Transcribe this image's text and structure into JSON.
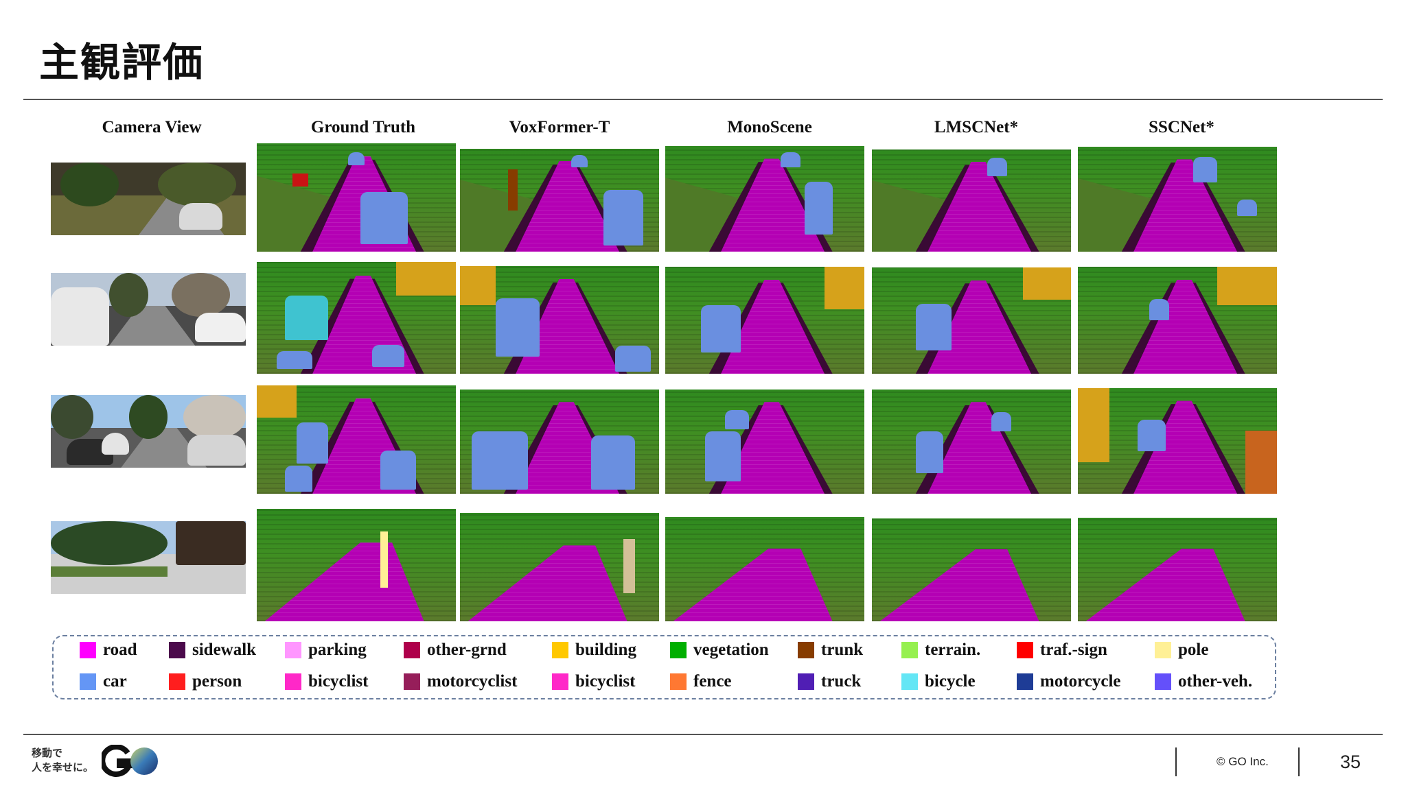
{
  "title": "主観評価",
  "columns": [
    "Camera View",
    "Ground Truth",
    "VoxFormer-T",
    "MonoScene",
    "LMSCNet*",
    "SSCNet*"
  ],
  "legend": [
    {
      "label": "road",
      "color": "#ff00ff"
    },
    {
      "label": "sidewalk",
      "color": "#4b0a4b"
    },
    {
      "label": "parking",
      "color": "#ff96ff"
    },
    {
      "label": "other-grnd",
      "color": "#af004b"
    },
    {
      "label": "building",
      "color": "#ffc800"
    },
    {
      "label": "vegetation",
      "color": "#00af00"
    },
    {
      "label": "trunk",
      "color": "#873c00"
    },
    {
      "label": "terrain.",
      "color": "#96f050"
    },
    {
      "label": "traf.-sign",
      "color": "#ff0000"
    },
    {
      "label": "pole",
      "color": "#fff096"
    },
    {
      "label": "car",
      "color": "#6496f5"
    },
    {
      "label": "person",
      "color": "#ff1e1e"
    },
    {
      "label": "bicyclist",
      "color": "#ff28c8"
    },
    {
      "label": "motorcyclist",
      "color": "#961e5a"
    },
    {
      "label": "bicyclist",
      "color": "#ff28c8"
    },
    {
      "label": "fence",
      "color": "#ff7832"
    },
    {
      "label": "truck",
      "color": "#501eb4"
    },
    {
      "label": "bicycle",
      "color": "#64e6f5"
    },
    {
      "label": "motorcycle",
      "color": "#1e3c96"
    },
    {
      "label": "other-veh.",
      "color": "#6450fa"
    }
  ],
  "footer": {
    "logo_line1": "移動で",
    "logo_line2": "人を幸せに。",
    "copyright": "© GO Inc.",
    "page": "35"
  }
}
